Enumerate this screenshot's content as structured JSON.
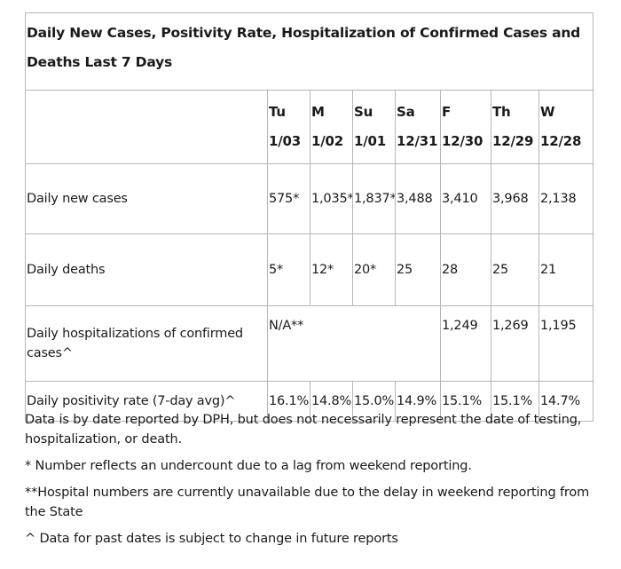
{
  "table": {
    "title": "Daily New Cases, Positivity Rate, Hospitalization of Confirmed Cases and Deaths Last 7 Days",
    "columns": [
      {
        "day": "Tu",
        "date": "1/03"
      },
      {
        "day": "M",
        "date": "1/02"
      },
      {
        "day": "Su",
        "date": "1/01"
      },
      {
        "day": "Sa",
        "date": "12/31"
      },
      {
        "day": "F",
        "date": "12/30"
      },
      {
        "day": "Th",
        "date": "12/29"
      },
      {
        "day": "W",
        "date": "12/28"
      }
    ],
    "rows": {
      "cases": {
        "label": "Daily new cases",
        "values": [
          "575*",
          "1,035*",
          "1,837*",
          "3,488",
          "3,410",
          "3,968",
          "2,138"
        ]
      },
      "deaths": {
        "label": "Daily deaths",
        "values": [
          "5*",
          "12*",
          "20*",
          "25",
          "28",
          "25",
          "21"
        ]
      },
      "hospitalizations": {
        "label": "Daily hospitalizations of confirmed cases^",
        "unavailable": "N/A**",
        "values": [
          "1,249",
          "1,269",
          "1,195"
        ]
      },
      "positivity": {
        "label": "Daily positivity rate (7-day avg)^",
        "values": [
          "16.1%",
          "14.8%",
          "15.0%",
          "14.9%",
          "15.1%",
          "15.1%",
          "14.7%"
        ]
      }
    }
  },
  "notes": {
    "reporting": "Data is by date reported by DPH, but does not necessarily represent the date of testing, hospitalization, or death.",
    "undercount": "* Number reflects an undercount due to a lag from weekend reporting.",
    "hospital": "**Hospital numbers are currently unavailable due to the delay in weekend reporting from the State",
    "subject_to_change": "^ Data for past dates is subject to change in future reports"
  }
}
